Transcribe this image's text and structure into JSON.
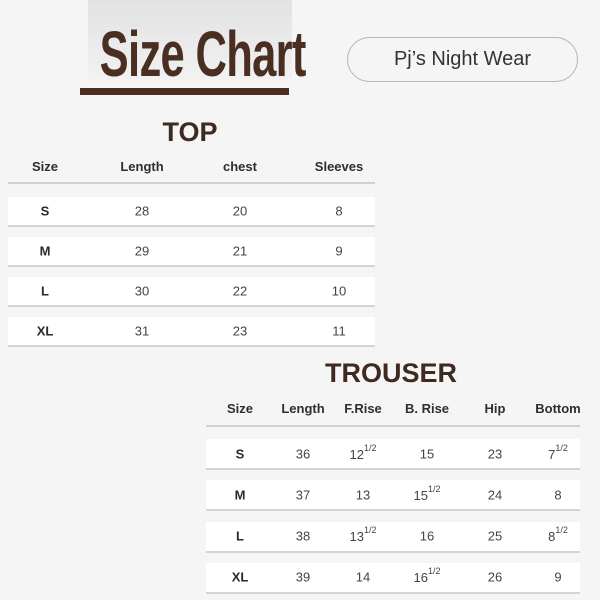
{
  "header": {
    "title": "Size Chart",
    "badge": "Pj’s Night Wear"
  },
  "colors": {
    "brand": "#4a2e22",
    "background": "#f5f5f5"
  },
  "top": {
    "heading": "TOP",
    "columns": [
      "Size",
      "Length",
      "chest",
      "Sleeves"
    ],
    "rows": [
      [
        "S",
        "28",
        "20",
        "8"
      ],
      [
        "M",
        "29",
        "21",
        "9"
      ],
      [
        "L",
        "30",
        "22",
        "10"
      ],
      [
        "XL",
        "31",
        "23",
        "11"
      ]
    ]
  },
  "trouser": {
    "heading": "TROUSER",
    "columns": [
      "Size",
      "Length",
      "F.Rise",
      "B. Rise",
      "Hip",
      "Bottom"
    ],
    "rows": [
      [
        {
          "v": "S"
        },
        {
          "v": "36"
        },
        {
          "v": "12",
          "f": "1/2"
        },
        {
          "v": "15"
        },
        {
          "v": "23"
        },
        {
          "v": "7",
          "f": "1/2"
        }
      ],
      [
        {
          "v": "M"
        },
        {
          "v": "37"
        },
        {
          "v": "13"
        },
        {
          "v": "15",
          "f": "1/2"
        },
        {
          "v": "24"
        },
        {
          "v": "8"
        }
      ],
      [
        {
          "v": "L"
        },
        {
          "v": "38"
        },
        {
          "v": "13",
          "f": "1/2"
        },
        {
          "v": "16"
        },
        {
          "v": "25"
        },
        {
          "v": "8",
          "f": "1/2"
        }
      ],
      [
        {
          "v": "XL"
        },
        {
          "v": "39"
        },
        {
          "v": "14"
        },
        {
          "v": "16",
          "f": "1/2"
        },
        {
          "v": "26"
        },
        {
          "v": "9"
        }
      ]
    ]
  }
}
